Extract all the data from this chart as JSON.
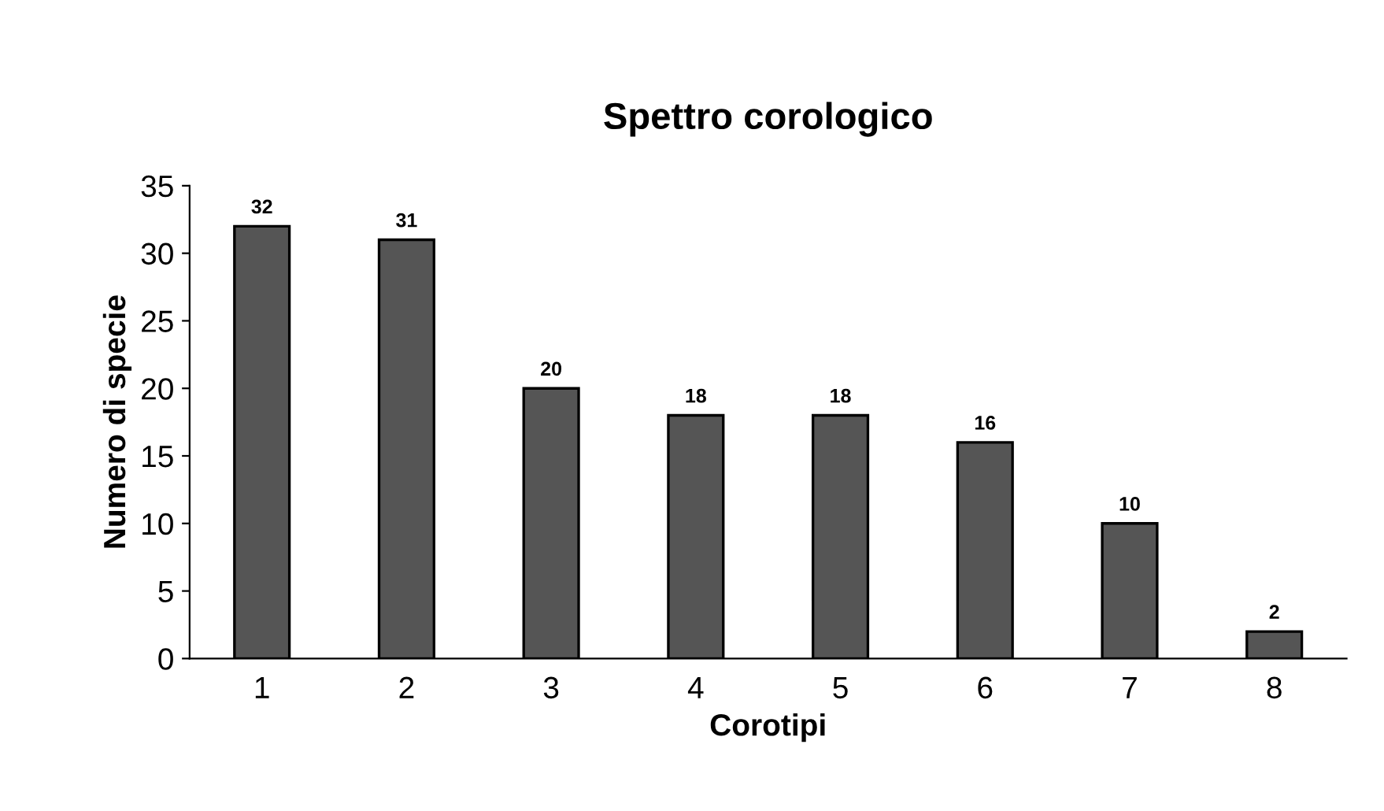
{
  "chart_data": {
    "type": "bar",
    "title": "Spettro corologico",
    "xlabel": "Corotipi",
    "ylabel": "Numero di specie",
    "categories": [
      "1",
      "2",
      "3",
      "4",
      "5",
      "6",
      "7",
      "8"
    ],
    "values": [
      32,
      31,
      20,
      18,
      18,
      16,
      10,
      2
    ],
    "color": "#555555",
    "ylim": [
      0,
      35
    ],
    "yticks": [
      0,
      5,
      10,
      15,
      20,
      25,
      30,
      35
    ],
    "data_labels": true,
    "grid": false,
    "legend": false
  }
}
